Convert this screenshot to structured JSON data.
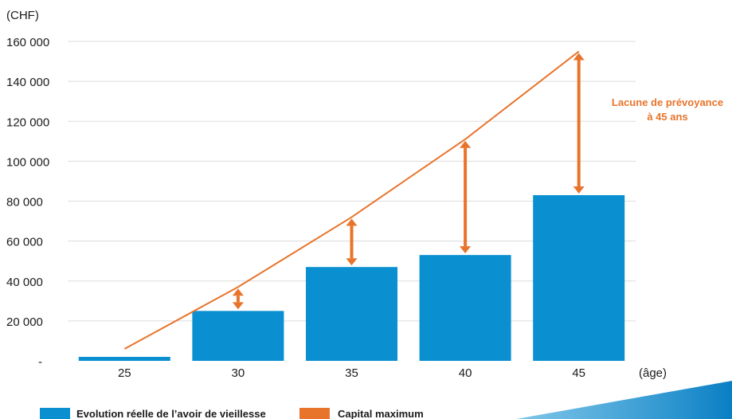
{
  "chart_data": {
    "type": "bar",
    "y_unit_label": "(CHF)",
    "x_unit_label": "(âge)",
    "categories": [
      "25",
      "30",
      "35",
      "40",
      "45"
    ],
    "ylim": [
      0,
      160000
    ],
    "y_ticks": [
      {
        "value": 0,
        "label": "-"
      },
      {
        "value": 20000,
        "label": "20 000"
      },
      {
        "value": 40000,
        "label": "40 000"
      },
      {
        "value": 60000,
        "label": "60 000"
      },
      {
        "value": 80000,
        "label": "80 000"
      },
      {
        "value": 100000,
        "label": "100 000"
      },
      {
        "value": 120000,
        "label": "120 000"
      },
      {
        "value": 140000,
        "label": "140 000"
      },
      {
        "value": 160000,
        "label": "160 000"
      }
    ],
    "grid": true,
    "series": [
      {
        "name": "Evolution réelle de l’avoir de vieillesse",
        "type": "bar",
        "color": "#0a8fd0",
        "values": [
          2000,
          25000,
          47000,
          53000,
          83000
        ]
      },
      {
        "name": "Capital maximum",
        "type": "line",
        "color": "#e8742c",
        "values": [
          6000,
          37000,
          72000,
          111000,
          155000
        ]
      }
    ],
    "gap_arrows": [
      {
        "category": "30",
        "from": 25000,
        "to": 37000
      },
      {
        "category": "35",
        "from": 47000,
        "to": 72000
      },
      {
        "category": "40",
        "from": 53000,
        "to": 111000
      },
      {
        "category": "45",
        "from": 83000,
        "to": 155000
      }
    ],
    "annotation": {
      "lines": [
        "Lacune de prévoyance",
        "à 45 ans"
      ],
      "color": "#e8742c"
    },
    "legend_position": "bottom-left"
  },
  "decor": {
    "accent_color": "#0a8fd0"
  }
}
